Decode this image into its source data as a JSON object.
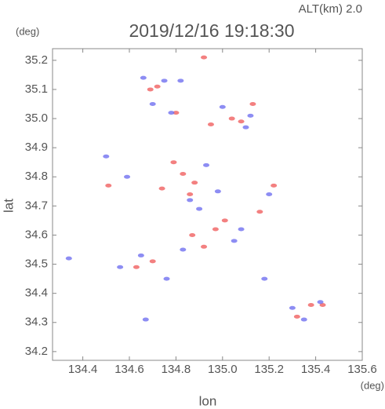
{
  "chart_data": {
    "type": "scatter",
    "title": "2019/12/16 19:18:30",
    "subtitle": "ALT(km) 2.0",
    "x_label": "lon",
    "y_label": "lat",
    "x_unit": "(deg)",
    "y_unit": "(deg)",
    "xlim": [
      134.27,
      135.6
    ],
    "ylim": [
      34.17,
      35.24
    ],
    "xticks": [
      134.4,
      134.6,
      134.8,
      {
        "value": 135,
        "label": "135.0"
      },
      135.2,
      135.4,
      135.6
    ],
    "yticks": [
      34.2,
      34.3,
      34.4,
      34.5,
      34.6,
      34.7,
      34.8,
      34.9,
      {
        "value": 35,
        "label": "35.0"
      },
      35.1,
      35.2
    ],
    "series": [
      {
        "color": "#f06060",
        "x": [
          134.92,
          134.72,
          134.69,
          134.95,
          135.04,
          135.08,
          135.13,
          134.83,
          134.88,
          134.74,
          134.51,
          134.97,
          135.01,
          134.92,
          134.87,
          134.63,
          134.7,
          135.38,
          135.43,
          135.32,
          134.79,
          135.16,
          135.22,
          134.8,
          134.86
        ],
        "y": [
          35.21,
          35.11,
          35.1,
          34.98,
          35.0,
          34.99,
          35.05,
          34.81,
          34.78,
          34.76,
          34.77,
          34.62,
          34.65,
          34.56,
          34.6,
          34.49,
          34.51,
          34.36,
          34.36,
          34.32,
          34.85,
          34.68,
          34.77,
          35.02,
          34.74
        ]
      },
      {
        "color": "#7070f0",
        "x": [
          134.66,
          134.75,
          134.82,
          135.0,
          135.1,
          135.12,
          134.78,
          134.93,
          134.5,
          134.59,
          134.86,
          134.98,
          135.05,
          134.65,
          134.76,
          134.83,
          134.56,
          135.3,
          135.42,
          135.35,
          134.34,
          134.67,
          135.18,
          134.7,
          134.9,
          135.2,
          135.08
        ],
        "y": [
          35.14,
          35.13,
          35.13,
          35.04,
          34.97,
          35.01,
          35.02,
          34.84,
          34.87,
          34.8,
          34.72,
          34.75,
          34.58,
          34.53,
          34.45,
          34.55,
          34.49,
          34.35,
          34.37,
          34.31,
          34.52,
          34.31,
          34.45,
          35.05,
          34.69,
          34.74,
          34.62
        ]
      }
    ]
  }
}
